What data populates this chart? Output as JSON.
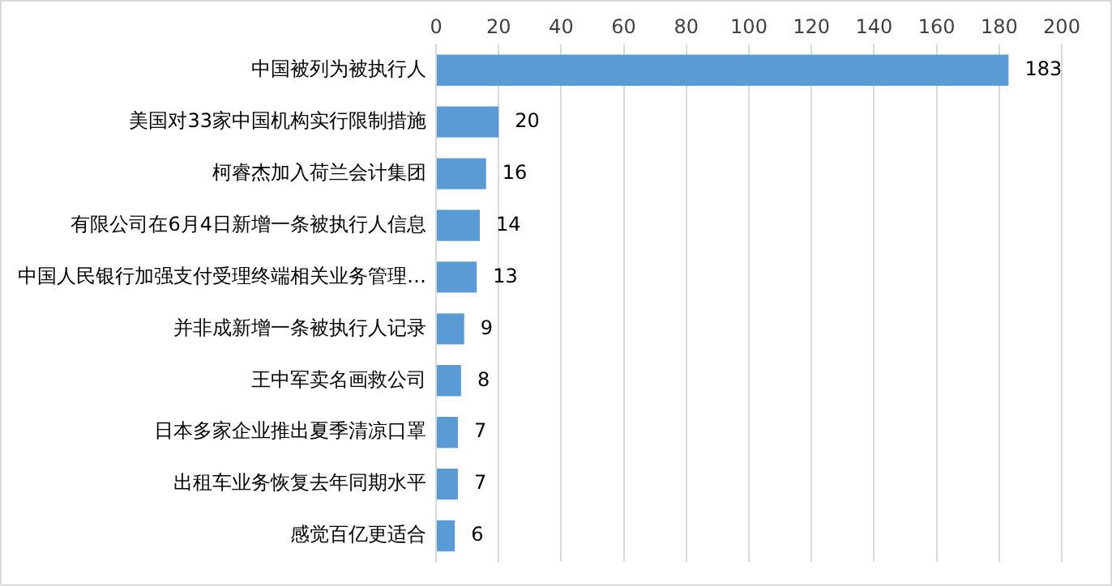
{
  "chart_data": {
    "type": "bar",
    "orientation": "horizontal",
    "categories": [
      "中国被列为被执行人",
      "美国对33家中国机构实行限制措施",
      "柯睿杰加入荷兰会计集团",
      "有限公司在6月4日新增一条被执行人信息",
      "中国人民银行加强支付受理终端相关业务管理…",
      "并非成新增一条被执行人记录",
      "王中军卖名画救公司",
      "日本多家企业推出夏季清凉口罩",
      "出租车业务恢复去年同期水平",
      "感觉百亿更适合"
    ],
    "values": [
      183,
      20,
      16,
      14,
      13,
      9,
      8,
      7,
      7,
      6
    ],
    "color": "#5b9bd5",
    "xlim": [
      0,
      200
    ],
    "xticks": [
      0,
      20,
      40,
      60,
      80,
      100,
      120,
      140,
      160,
      180,
      200
    ],
    "grid": "x",
    "legend": false,
    "data_labels": true
  }
}
